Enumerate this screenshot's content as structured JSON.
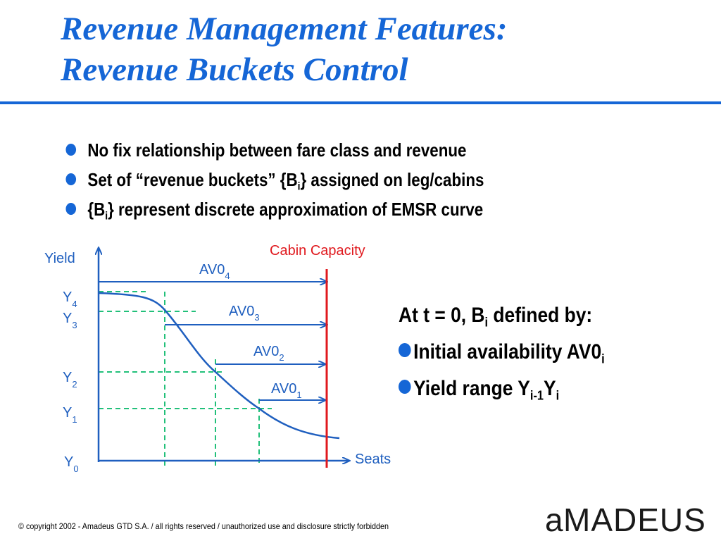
{
  "title": {
    "line1": "Revenue Management Features:",
    "line2": "Revenue Buckets Control"
  },
  "bullets": [
    {
      "pre": "No fix relationship between fare class and revenue"
    },
    {
      "pre": "Set of “revenue buckets” {B",
      "sub": "i",
      "post": "} assigned on leg/cabins"
    },
    {
      "pre": "{B",
      "sub": "i",
      "post": "} represent discrete approximation of EMSR curve"
    }
  ],
  "diagram": {
    "y_axis_label": "Yield",
    "x_axis_label": "Seats",
    "capacity_label": "Cabin Capacity",
    "y_labels": [
      {
        "base": "Y",
        "sub": "4"
      },
      {
        "base": "Y",
        "sub": "3"
      },
      {
        "base": "Y",
        "sub": "2"
      },
      {
        "base": "Y",
        "sub": "1"
      },
      {
        "base": "Y",
        "sub": "0"
      }
    ],
    "av_labels": [
      {
        "base": "AV0",
        "sub": "4"
      },
      {
        "base": "AV0",
        "sub": "3"
      },
      {
        "base": "AV0",
        "sub": "2"
      },
      {
        "base": "AV0",
        "sub": "1"
      }
    ],
    "colors": {
      "axis": "#1f5fbf",
      "curve": "#1f5fbf",
      "dashed": "#22c07a",
      "capacity": "#e0191e",
      "text": "#1f5fbf"
    }
  },
  "right_panel": {
    "heading_pre": "At t = 0, B",
    "heading_sub": "i",
    "heading_post": " defined by:",
    "item1_pre": "Initial availability AV0",
    "item1_sub": "i",
    "item2_pre": "Yield range Y",
    "item2_sub1": "i-1",
    "item2_mid": "Y",
    "item2_sub2": "i"
  },
  "footer": {
    "copyright": "© copyright 2002 - Amadeus GTD S.A. / all rights reserved / unauthorized use and disclosure strictly forbidden",
    "logo_text": "amadeus"
  }
}
